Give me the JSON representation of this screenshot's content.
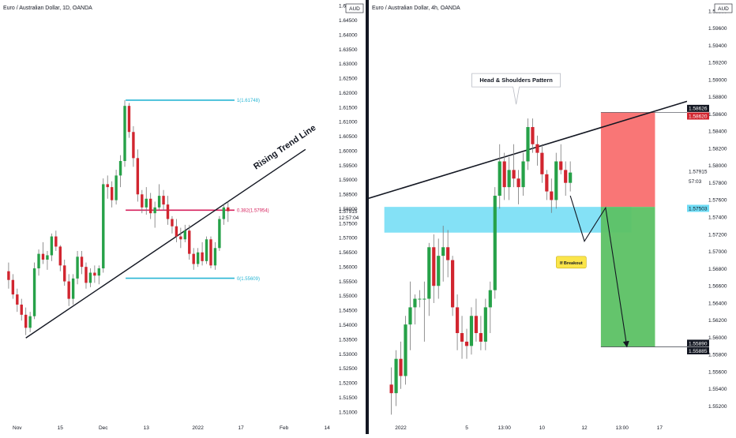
{
  "colors": {
    "up": "#26a148",
    "down": "#d1252f",
    "wick": "#777777",
    "cyan_line": "#29b6d4",
    "magenta_line": "#d6215d",
    "blue_zone": "#6fdcf5",
    "stop_zone": "#f96f6f",
    "target_zone": "#5cc164",
    "callout_fill": "#fbe54a",
    "price_tag_red": "#d1252f",
    "price_tag_black": "#131722",
    "price_tag_cyan": "#6fdcf5"
  },
  "chart_data": [
    {
      "type": "candlestick",
      "title": "Euro / Australian Dollar, 1D, OANDA",
      "currency_label": "AUD",
      "y_ticks": [
        "1.65000",
        "1.64500",
        "1.64000",
        "1.63500",
        "1.63000",
        "1.62500",
        "1.62000",
        "1.61500",
        "1.61000",
        "1.60500",
        "1.60000",
        "1.59500",
        "1.59000",
        "1.58500",
        "1.58000",
        "1.57500",
        "1.57000",
        "1.56500",
        "1.56000",
        "1.55500",
        "1.55000",
        "1.54500",
        "1.54000",
        "1.53500",
        "1.53000",
        "1.52500",
        "1.52000",
        "1.51500",
        "1.51000"
      ],
      "ylim": [
        1.507,
        1.652
      ],
      "x_ticks": [
        {
          "label": "Nov",
          "index": 2
        },
        {
          "label": "15",
          "index": 12
        },
        {
          "label": "Dec",
          "index": 22
        },
        {
          "label": "13",
          "index": 32
        },
        {
          "label": "2022",
          "index": 44
        },
        {
          "label": "17",
          "index": 54
        },
        {
          "label": "Feb",
          "index": 64
        },
        {
          "label": "14",
          "index": 74
        }
      ],
      "x_range": [
        -2,
        76
      ],
      "last_price_label": "1.57915",
      "countdown_label": "12:57:04",
      "annotation": "Rising Trend Line",
      "fib_levels": [
        {
          "label": "1(1.61748)",
          "value": 1.61748,
          "color_key": "cyan_line"
        },
        {
          "label": "0.382(1.57954)",
          "value": 1.57954,
          "color_key": "magenta_line"
        },
        {
          "label": "0(1.55609)",
          "value": 1.55609,
          "color_key": "cyan_line"
        }
      ],
      "trendline": {
        "from": {
          "index": 4,
          "price": 1.5355
        },
        "to": {
          "index": 69,
          "price": 1.6005
        }
      },
      "ohlc": [
        [
          1.5585,
          1.5615,
          1.5525,
          1.5555
        ],
        [
          1.5555,
          1.5575,
          1.549,
          1.5505
        ],
        [
          1.5505,
          1.5525,
          1.5445,
          1.547
        ],
        [
          1.547,
          1.549,
          1.5415,
          1.5435
        ],
        [
          1.5435,
          1.546,
          1.5365,
          1.539
        ],
        [
          1.539,
          1.5445,
          1.5375,
          1.543
        ],
        [
          1.543,
          1.5615,
          1.542,
          1.5595
        ],
        [
          1.5595,
          1.566,
          1.557,
          1.5645
        ],
        [
          1.5645,
          1.5685,
          1.561,
          1.5625
        ],
        [
          1.5625,
          1.5655,
          1.559,
          1.564
        ],
        [
          1.564,
          1.5715,
          1.562,
          1.5705
        ],
        [
          1.5705,
          1.5725,
          1.5655,
          1.567
        ],
        [
          1.567,
          1.5675,
          1.5585,
          1.5605
        ],
        [
          1.5605,
          1.5625,
          1.5535,
          1.555
        ],
        [
          1.555,
          1.5575,
          1.5465,
          1.549
        ],
        [
          1.549,
          1.5575,
          1.547,
          1.556
        ],
        [
          1.556,
          1.5655,
          1.554,
          1.5635
        ],
        [
          1.5635,
          1.5655,
          1.5575,
          1.56
        ],
        [
          1.56,
          1.5615,
          1.5525,
          1.5545
        ],
        [
          1.5545,
          1.5595,
          1.553,
          1.558
        ],
        [
          1.558,
          1.5605,
          1.5545,
          1.557
        ],
        [
          1.557,
          1.5605,
          1.554,
          1.5595
        ],
        [
          1.5595,
          1.5905,
          1.558,
          1.5885
        ],
        [
          1.5885,
          1.5915,
          1.5835,
          1.5875
        ],
        [
          1.5875,
          1.5895,
          1.5805,
          1.583
        ],
        [
          1.583,
          1.5935,
          1.5815,
          1.5915
        ],
        [
          1.5915,
          1.5985,
          1.5875,
          1.5965
        ],
        [
          1.5965,
          1.6175,
          1.5945,
          1.6155
        ],
        [
          1.6155,
          1.6165,
          1.6045,
          1.6065
        ],
        [
          1.6065,
          1.6085,
          1.5945,
          1.5975
        ],
        [
          1.5975,
          1.6005,
          1.5825,
          1.585
        ],
        [
          1.585,
          1.5865,
          1.5785,
          1.5805
        ],
        [
          1.5805,
          1.5875,
          1.578,
          1.5835
        ],
        [
          1.5835,
          1.5855,
          1.5765,
          1.5785
        ],
        [
          1.5785,
          1.5825,
          1.5735,
          1.5805
        ],
        [
          1.5805,
          1.5885,
          1.5795,
          1.5845
        ],
        [
          1.5845,
          1.5865,
          1.5795,
          1.5815
        ],
        [
          1.5815,
          1.5845,
          1.5745,
          1.5765
        ],
        [
          1.5765,
          1.5775,
          1.5715,
          1.574
        ],
        [
          1.574,
          1.5765,
          1.5685,
          1.5705
        ],
        [
          1.5705,
          1.5735,
          1.5665,
          1.5695
        ],
        [
          1.5695,
          1.5745,
          1.5685,
          1.5725
        ],
        [
          1.5725,
          1.5745,
          1.5625,
          1.5645
        ],
        [
          1.5645,
          1.5665,
          1.559,
          1.561
        ],
        [
          1.561,
          1.5665,
          1.56,
          1.565
        ],
        [
          1.565,
          1.5685,
          1.5605,
          1.562
        ],
        [
          1.562,
          1.5705,
          1.561,
          1.5695
        ],
        [
          1.5695,
          1.5705,
          1.5595,
          1.5605
        ],
        [
          1.5605,
          1.5685,
          1.559,
          1.5665
        ],
        [
          1.5665,
          1.5775,
          1.5655,
          1.5765
        ],
        [
          1.5765,
          1.5815,
          1.5745,
          1.5805
        ],
        [
          1.5805,
          1.5825,
          1.5755,
          1.5792
        ]
      ]
    },
    {
      "type": "candlestick",
      "title": "Euro / Australian Dollar, 4h, OANDA",
      "currency_label": "AUD",
      "y_ticks": [
        "1.59800",
        "1.59600",
        "1.59400",
        "1.59200",
        "1.59000",
        "1.58800",
        "1.58600",
        "1.58400",
        "1.58200",
        "1.58000",
        "1.57800",
        "1.57600",
        "1.57400",
        "1.57200",
        "1.57000",
        "1.56800",
        "1.56600",
        "1.56400",
        "1.56200",
        "1.56000",
        "1.55800",
        "1.55600",
        "1.55400",
        "1.55200"
      ],
      "ylim": [
        1.5503,
        1.5993
      ],
      "x_ticks": [
        {
          "label": "2022",
          "index": 2
        },
        {
          "label": "5",
          "index": 16
        },
        {
          "label": "13:00",
          "index": 24
        },
        {
          "label": "10",
          "index": 32
        },
        {
          "label": "12",
          "index": 41
        },
        {
          "label": "13:00",
          "index": 49
        },
        {
          "label": "17",
          "index": 57
        }
      ],
      "x_range": [
        -4.8,
        62.8
      ],
      "price_labels": [
        {
          "text": "1.58626",
          "value": 1.58626,
          "style": "black"
        },
        {
          "text": "1.58620",
          "value": 1.5862,
          "style": "red"
        },
        {
          "text": "1.57915",
          "value": 1.57915,
          "style": "plain"
        },
        {
          "text": "57:03",
          "value": 1.57855,
          "style": "plain"
        },
        {
          "text": "1.57503",
          "value": 1.57503,
          "style": "cyan"
        },
        {
          "text": "1.55890",
          "value": 1.5589,
          "style": "black"
        },
        {
          "text": "1.55885",
          "value": 1.55885,
          "style": "black"
        }
      ],
      "annotations": {
        "pattern_label": "Head & Shoulders Pattern",
        "breakout_label": "If Breakout"
      },
      "support_zone": {
        "from_index": -1.5,
        "to_index": 51,
        "low": 1.5722,
        "high": 1.5752
      },
      "neckline": {
        "from": {
          "index": -4.8,
          "price": 1.5762
        },
        "to": {
          "index": 62.8,
          "price": 1.5875
        }
      },
      "stop_zone": {
        "from_index": 44.5,
        "to_index": 56,
        "low": 1.5752,
        "high": 1.5862
      },
      "target_zone": {
        "from_index": 44.5,
        "to_index": 56,
        "low": 1.5589,
        "high": 1.5752
      },
      "projection_path": [
        {
          "index": 38,
          "price": 1.5765
        },
        {
          "index": 41,
          "price": 1.5712
        },
        {
          "index": 45.5,
          "price": 1.5751
        },
        {
          "index": 50,
          "price": 1.559
        }
      ],
      "ohlc": [
        [
          1.5545,
          1.5565,
          1.551,
          1.5535
        ],
        [
          1.5535,
          1.5585,
          1.552,
          1.5575
        ],
        [
          1.5575,
          1.5595,
          1.554,
          1.5555
        ],
        [
          1.5555,
          1.5625,
          1.5545,
          1.5615
        ],
        [
          1.5615,
          1.5665,
          1.5585,
          1.5635
        ],
        [
          1.5635,
          1.565,
          1.5615,
          1.5645
        ],
        [
          1.5645,
          1.5655,
          1.5635,
          1.5645
        ],
        [
          1.5645,
          1.5665,
          1.5595,
          1.5645
        ],
        [
          1.5645,
          1.571,
          1.5625,
          1.5705
        ],
        [
          1.5705,
          1.572,
          1.564,
          1.566
        ],
        [
          1.566,
          1.5715,
          1.5645,
          1.5695
        ],
        [
          1.5695,
          1.573,
          1.5665,
          1.5705
        ],
        [
          1.5705,
          1.5725,
          1.567,
          1.569
        ],
        [
          1.569,
          1.5695,
          1.5625,
          1.5635
        ],
        [
          1.5635,
          1.565,
          1.5585,
          1.5605
        ],
        [
          1.5605,
          1.5625,
          1.5575,
          1.5595
        ],
        [
          1.5595,
          1.561,
          1.5575,
          1.559
        ],
        [
          1.559,
          1.5635,
          1.558,
          1.5625
        ],
        [
          1.5625,
          1.5645,
          1.5595,
          1.5605
        ],
        [
          1.5605,
          1.5625,
          1.5585,
          1.5595
        ],
        [
          1.5595,
          1.5645,
          1.5585,
          1.5635
        ],
        [
          1.5635,
          1.5665,
          1.5605,
          1.5655
        ],
        [
          1.5655,
          1.5775,
          1.5645,
          1.5765
        ],
        [
          1.5765,
          1.5825,
          1.575,
          1.5805
        ],
        [
          1.5805,
          1.5815,
          1.576,
          1.5775
        ],
        [
          1.5775,
          1.581,
          1.576,
          1.5795
        ],
        [
          1.5795,
          1.5825,
          1.5775,
          1.5785
        ],
        [
          1.5785,
          1.5795,
          1.5755,
          1.5775
        ],
        [
          1.5775,
          1.5815,
          1.5765,
          1.5805
        ],
        [
          1.5805,
          1.5855,
          1.5795,
          1.5845
        ],
        [
          1.5845,
          1.5855,
          1.5815,
          1.5825
        ],
        [
          1.5825,
          1.5835,
          1.58,
          1.5815
        ],
        [
          1.5815,
          1.5825,
          1.578,
          1.579
        ],
        [
          1.579,
          1.5795,
          1.576,
          1.577
        ],
        [
          1.577,
          1.5785,
          1.5745,
          1.576
        ],
        [
          1.576,
          1.5815,
          1.575,
          1.5805
        ],
        [
          1.5805,
          1.5825,
          1.579,
          1.5795
        ],
        [
          1.5795,
          1.5805,
          1.5765,
          1.578
        ],
        [
          1.578,
          1.5805,
          1.577,
          1.5792
        ]
      ]
    }
  ]
}
